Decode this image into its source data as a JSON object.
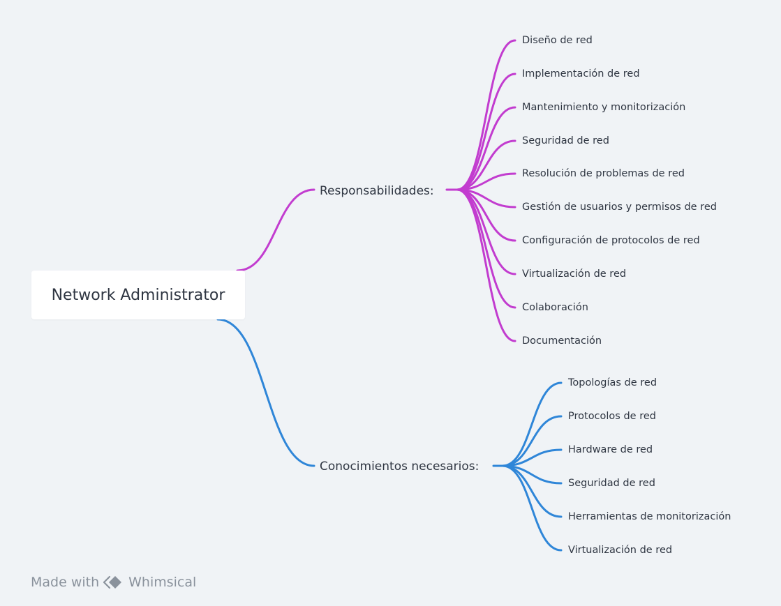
{
  "root": {
    "label": "Network Administrator"
  },
  "branches": [
    {
      "label": "Responsabilidades:",
      "color": "#c23ccf",
      "children": [
        "Diseño de red",
        "Implementación de red",
        "Mantenimiento y monitorización",
        "Seguridad de red",
        "Resolución de problemas de red",
        "Gestión de usuarios y permisos de red",
        "Configuración de protocolos de red",
        "Virtualización de red",
        "Colaboración",
        "Documentación"
      ]
    },
    {
      "label": "Conocimientos necesarios:",
      "color": "#2f86d8",
      "children": [
        "Topologías de red",
        "Protocolos de red",
        "Hardware de red",
        "Seguridad de red",
        "Herramientas de monitorización",
        "Virtualización de red"
      ]
    }
  ],
  "footer": {
    "made_with": "Made with",
    "brand": "Whimsical",
    "logo_icon": "whimsical-logo-icon"
  }
}
